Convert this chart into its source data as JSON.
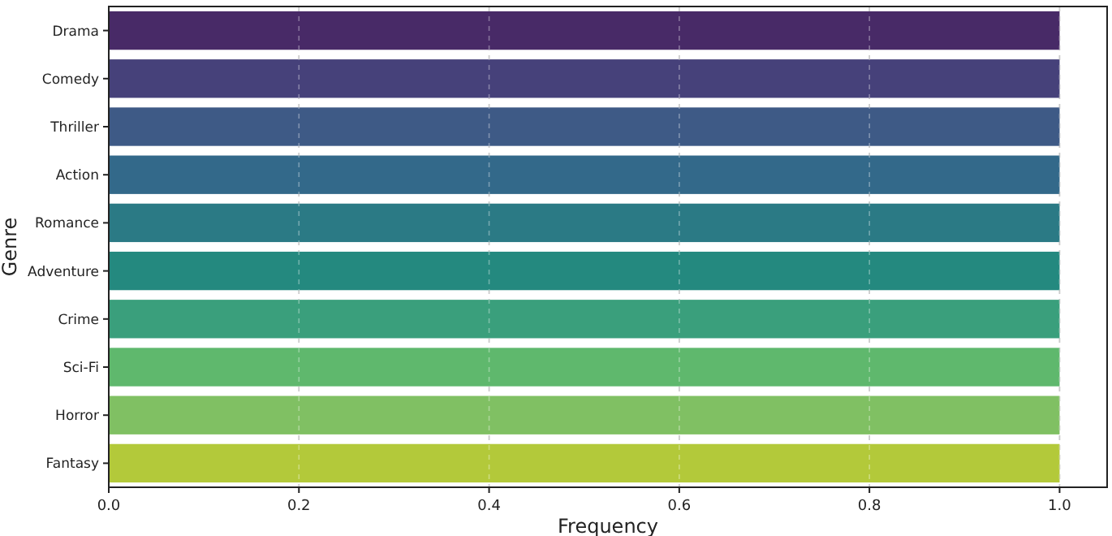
{
  "chart_data": {
    "type": "bar",
    "orientation": "horizontal",
    "xlabel": "Frequency",
    "ylabel": "Genre",
    "categories": [
      "Drama",
      "Comedy",
      "Thriller",
      "Action",
      "Romance",
      "Adventure",
      "Crime",
      "Sci-Fi",
      "Horror",
      "Fantasy"
    ],
    "values": [
      1,
      1,
      1,
      1,
      1,
      1,
      1,
      1,
      1,
      1
    ],
    "colors": [
      "#482a67",
      "#46417a",
      "#3e5a86",
      "#33698a",
      "#2b7a85",
      "#24897f",
      "#3a9f7c",
      "#5fb86d",
      "#80c063",
      "#b3c93a"
    ],
    "xlim": [
      0,
      1.05
    ],
    "xticks": [
      {
        "value": 0,
        "label": "0.0"
      },
      {
        "value": 0.2,
        "label": "0.2"
      },
      {
        "value": 0.4,
        "label": "0.4"
      },
      {
        "value": 0.6,
        "label": "0.6"
      },
      {
        "value": 0.8,
        "label": "0.8"
      },
      {
        "value": 1,
        "label": "1.0"
      }
    ],
    "grid": "x"
  }
}
